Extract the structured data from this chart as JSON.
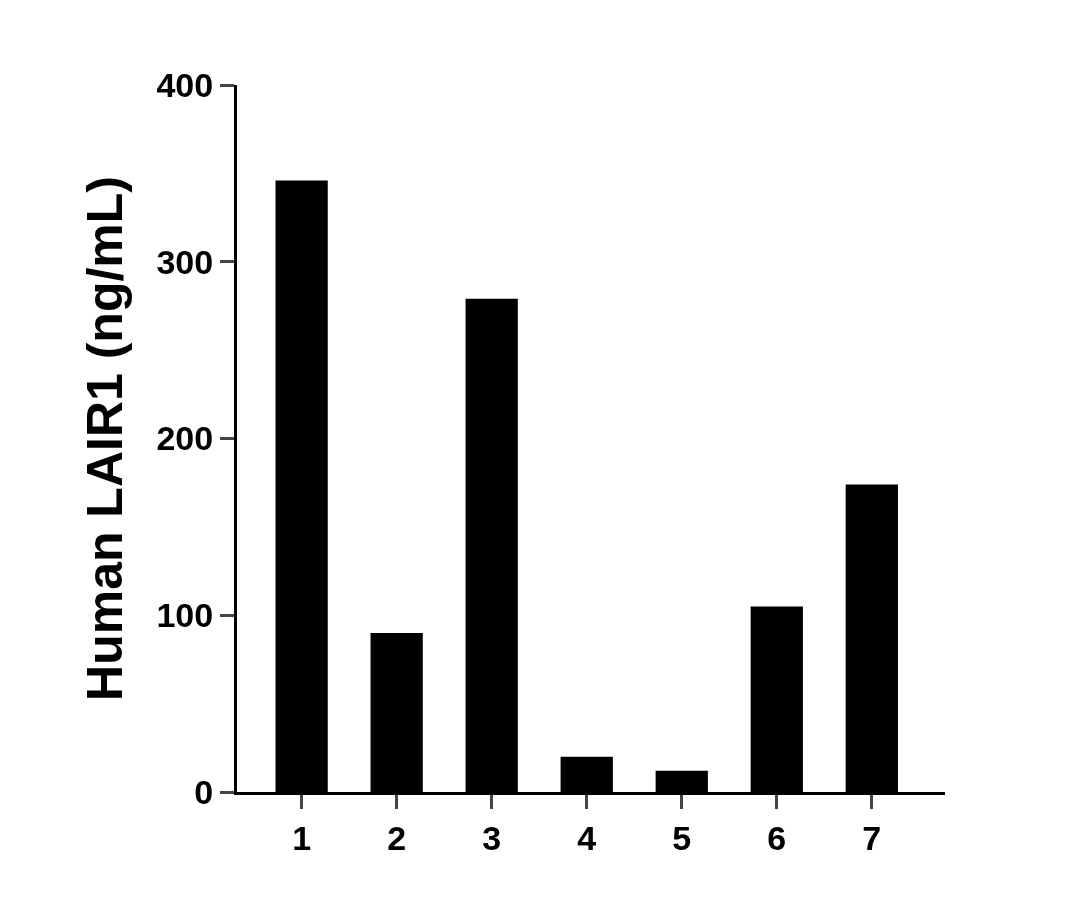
{
  "chart_data": {
    "type": "bar",
    "ylabel": "Human LAIR1 (ng/mL)",
    "categories": [
      "1",
      "2",
      "3",
      "4",
      "5",
      "6",
      "7"
    ],
    "values": [
      346,
      90,
      279,
      20,
      12,
      105,
      174
    ],
    "color": "#000000",
    "ylim": [
      0,
      400
    ],
    "yticks": [
      0,
      100,
      200,
      300,
      400
    ],
    "grid": false
  }
}
